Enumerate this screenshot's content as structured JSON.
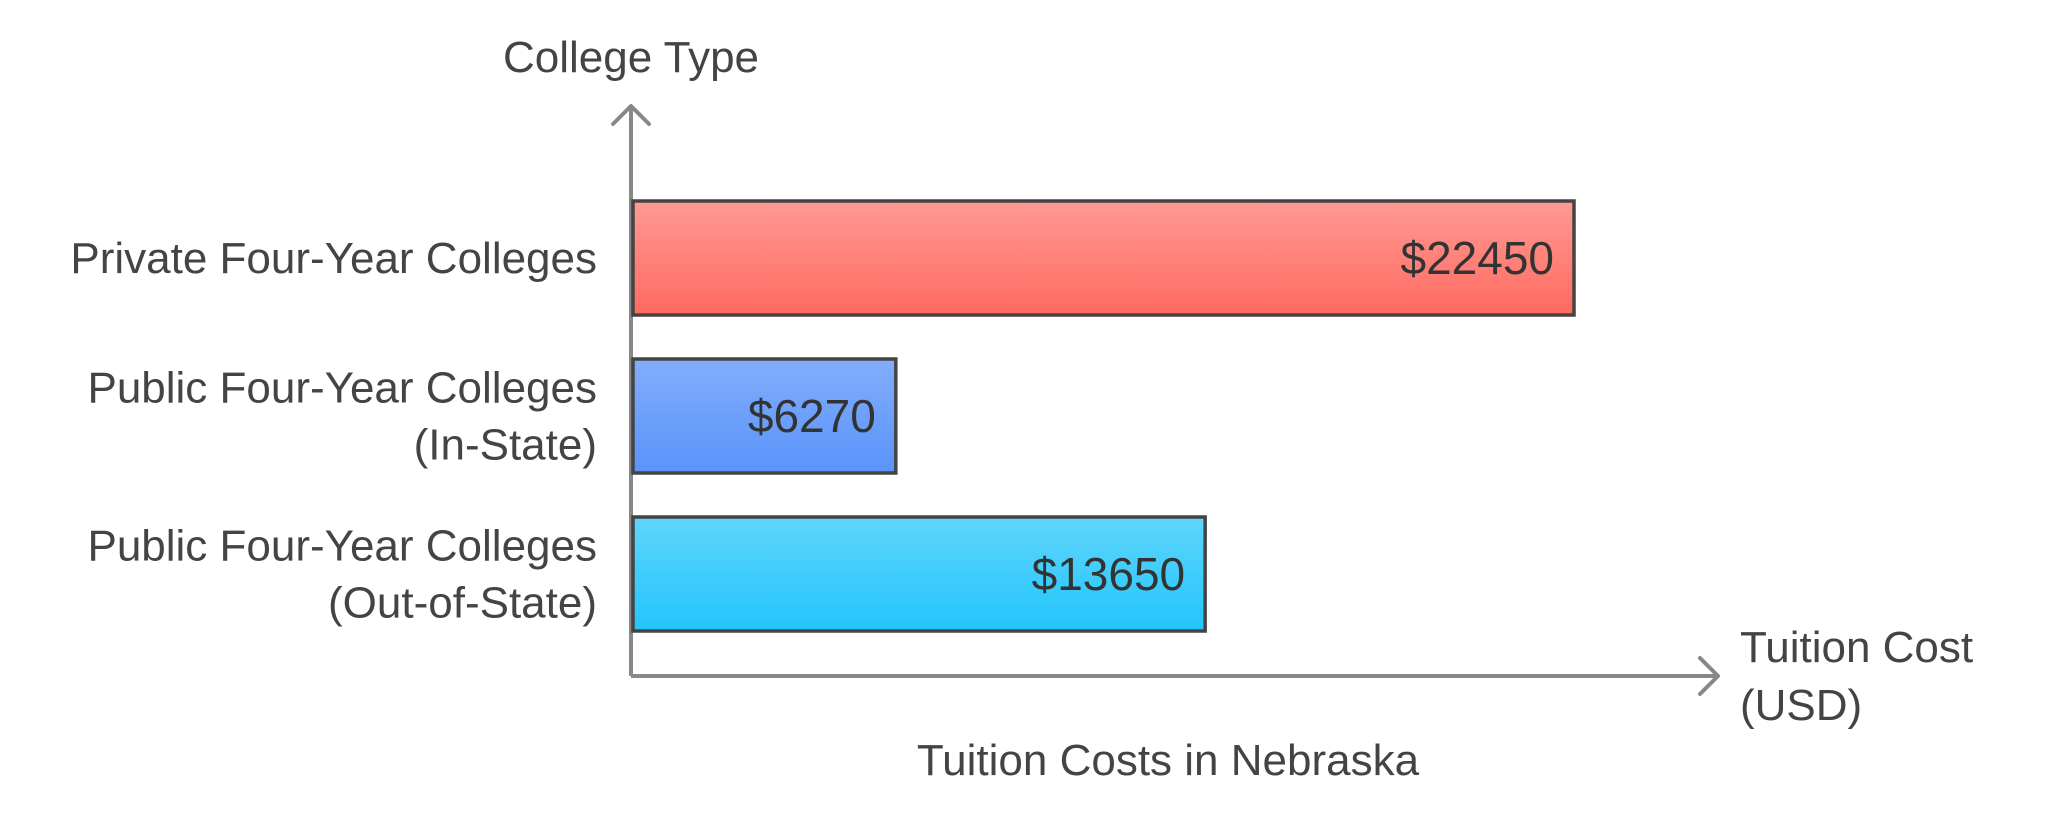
{
  "chart_data": {
    "type": "bar",
    "orientation": "horizontal",
    "title": "Tuition Costs in Nebraska",
    "xlabel": [
      "Tuition Cost",
      "(USD)"
    ],
    "ylabel": "College Type",
    "categories": [
      [
        "Private Four-Year Colleges"
      ],
      [
        "Public Four-Year Colleges",
        "(In-State)"
      ],
      [
        "Public Four-Year Colleges",
        "(Out-of-State)"
      ]
    ],
    "values": [
      22450,
      6270,
      13650
    ],
    "value_labels": [
      "$22450",
      "$6270",
      "$13650"
    ],
    "xlim": [
      0,
      22450
    ],
    "colors": [
      {
        "top": "#ff9a94",
        "bottom": "#ff6a60"
      },
      {
        "top": "#82adfb",
        "bottom": "#5a93fb"
      },
      {
        "top": "#5fd5fc",
        "bottom": "#22c5fb"
      }
    ],
    "bar_stroke": "#444444",
    "axis_color": "#888888",
    "grid": false,
    "legend": "none"
  }
}
